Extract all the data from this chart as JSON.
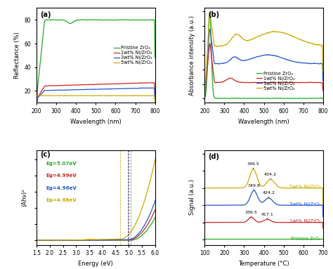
{
  "panel_a": {
    "label": "(a)",
    "xlabel": "Wavelength (nm)",
    "ylabel": "Reflectance (%)",
    "xlim": [
      200,
      800
    ],
    "ylim": [
      10,
      90
    ],
    "yticks": [
      20,
      40,
      60,
      80
    ],
    "xticks": [
      200,
      300,
      400,
      500,
      600,
      700,
      800
    ],
    "legend": [
      "Pristine ZrO₂",
      "1wt% Ni/ZrO₂",
      "3wt% Ni/ZrO₂",
      "5wt% Ni/ZrO₂"
    ],
    "colors": [
      "#22aa22",
      "#cc2222",
      "#2255cc",
      "#ccaa00"
    ]
  },
  "panel_b": {
    "label": "(b)",
    "xlabel": "Wavelength (nm)",
    "ylabel": "Absorbance intensity (a.u.)",
    "xlim": [
      200,
      800
    ],
    "xticks": [
      200,
      300,
      400,
      500,
      600,
      700,
      800
    ],
    "legend": [
      "Pristine ZrO₂",
      "1wt% Ni/ZrO₂",
      "3wt% Ni/ZrO₂",
      "5wt% Ni/ZrO₂"
    ],
    "colors": [
      "#22aa22",
      "#cc2222",
      "#2255cc",
      "#ccaa00"
    ]
  },
  "panel_c": {
    "label": "(c)",
    "xlabel": "Energy (eV)",
    "ylabel": "(Ahν)²",
    "xlim": [
      1.5,
      6.0
    ],
    "xticks": [
      1.5,
      2.0,
      2.5,
      3.0,
      3.5,
      4.0,
      4.5,
      5.0,
      5.5,
      6.0
    ],
    "annotations": [
      {
        "text": "Eg=5.07eV",
        "color": "#22aa22"
      },
      {
        "text": "Eg=4.99eV",
        "color": "#cc2222"
      },
      {
        "text": "Eg=4.96eV",
        "color": "#2255cc"
      },
      {
        "text": "Eg=4.68eV",
        "color": "#ccaa00"
      }
    ],
    "bandgaps": [
      5.07,
      4.99,
      4.96,
      4.68
    ],
    "colors": [
      "#22aa22",
      "#cc2222",
      "#2255cc",
      "#ccaa00"
    ]
  },
  "panel_d": {
    "label": "(d)",
    "xlabel": "Temperature (°C)",
    "ylabel": "Signal (a.u.)",
    "xlim": [
      100,
      700
    ],
    "xticks": [
      100,
      200,
      300,
      400,
      500,
      600,
      700
    ],
    "peak_labels": {
      "5wt_p1": {
        "x": 346.5,
        "label": "346.5"
      },
      "5wt_p2": {
        "x": 434.2,
        "label": "434.2"
      },
      "3wt_p1": {
        "x": 349.8,
        "label": "349.8"
      },
      "3wt_p2": {
        "x": 424.2,
        "label": "424.2"
      },
      "1wt_p1": {
        "x": 336.5,
        "label": "336.5"
      },
      "1wt_p2": {
        "x": 417.1,
        "label": "417.1"
      }
    },
    "legend": [
      "5wt% Ni/ZrO₂",
      "3wt% Ni/ZrO₂",
      "1wt% Ni/ZrO₂",
      "Pristine ZrO₂"
    ],
    "colors": [
      "#ccaa00",
      "#2255cc",
      "#cc2222",
      "#22aa22"
    ],
    "offsets": [
      3.0,
      2.0,
      1.0,
      0.0
    ]
  },
  "background_color": "#ffffff"
}
